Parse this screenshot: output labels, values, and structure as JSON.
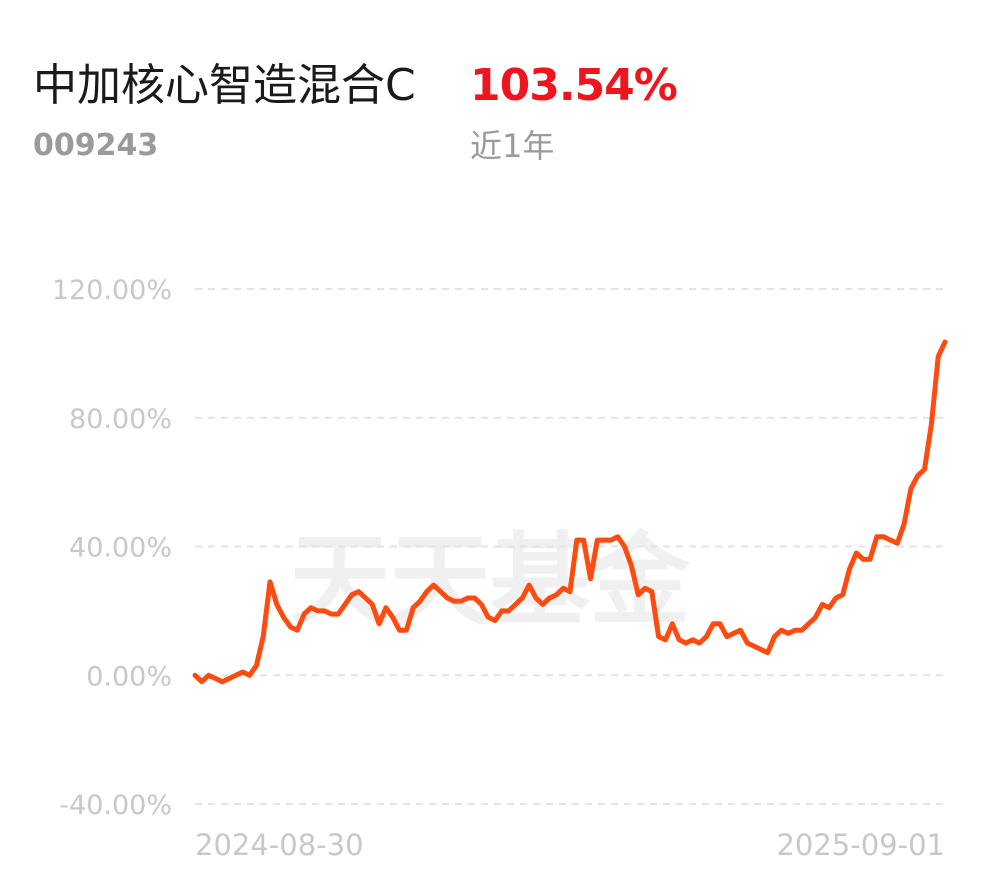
{
  "header": {
    "fund_name": "中加核心智造混合C",
    "return_value": "103.54%",
    "fund_code": "009243",
    "period": "近1年"
  },
  "watermark": "天天基金",
  "colors": {
    "line": "#ff4a10",
    "return_red": "#f0141e",
    "grid": "#e3e3e3",
    "axis_text": "#c8c8c8"
  },
  "chart_data": {
    "type": "line",
    "title": "",
    "xlabel": "",
    "ylabel": "",
    "ylim": [
      -40,
      120
    ],
    "yticks": [
      "120.00%",
      "80.00%",
      "40.00%",
      "0.00%",
      "-40.00%"
    ],
    "ytick_values": [
      120,
      80,
      40,
      0,
      -40
    ],
    "grid": "horizontal dashed",
    "legend": "none",
    "x_range": [
      "2024-08-30",
      "2025-09-01"
    ],
    "x_labels": [
      "2024-08-30",
      "2025-09-01"
    ],
    "series": [
      {
        "values": [
          0,
          -2,
          0,
          -1,
          -2,
          -1,
          0,
          1,
          0,
          3,
          12,
          29,
          22,
          18,
          15,
          14,
          19,
          21,
          20,
          20,
          19,
          19,
          22,
          25,
          26,
          24,
          22,
          16,
          21,
          18,
          14,
          14,
          21,
          23,
          26,
          28,
          26,
          24,
          23,
          23,
          24,
          24,
          22,
          18,
          17,
          20,
          20,
          22,
          24,
          28,
          24,
          22,
          24,
          25,
          27,
          26,
          42,
          42,
          30,
          42,
          42,
          42,
          43,
          40,
          34,
          25,
          27,
          26,
          12,
          11,
          16,
          11,
          10,
          11,
          10,
          12,
          16,
          16,
          12,
          13,
          14,
          10,
          9,
          8,
          7,
          12,
          14,
          13,
          14,
          14,
          16,
          18,
          22,
          21,
          24,
          25,
          33,
          38,
          36,
          36,
          43,
          43,
          42,
          41,
          47,
          58,
          62,
          64,
          78,
          99,
          103.54
        ]
      }
    ]
  }
}
